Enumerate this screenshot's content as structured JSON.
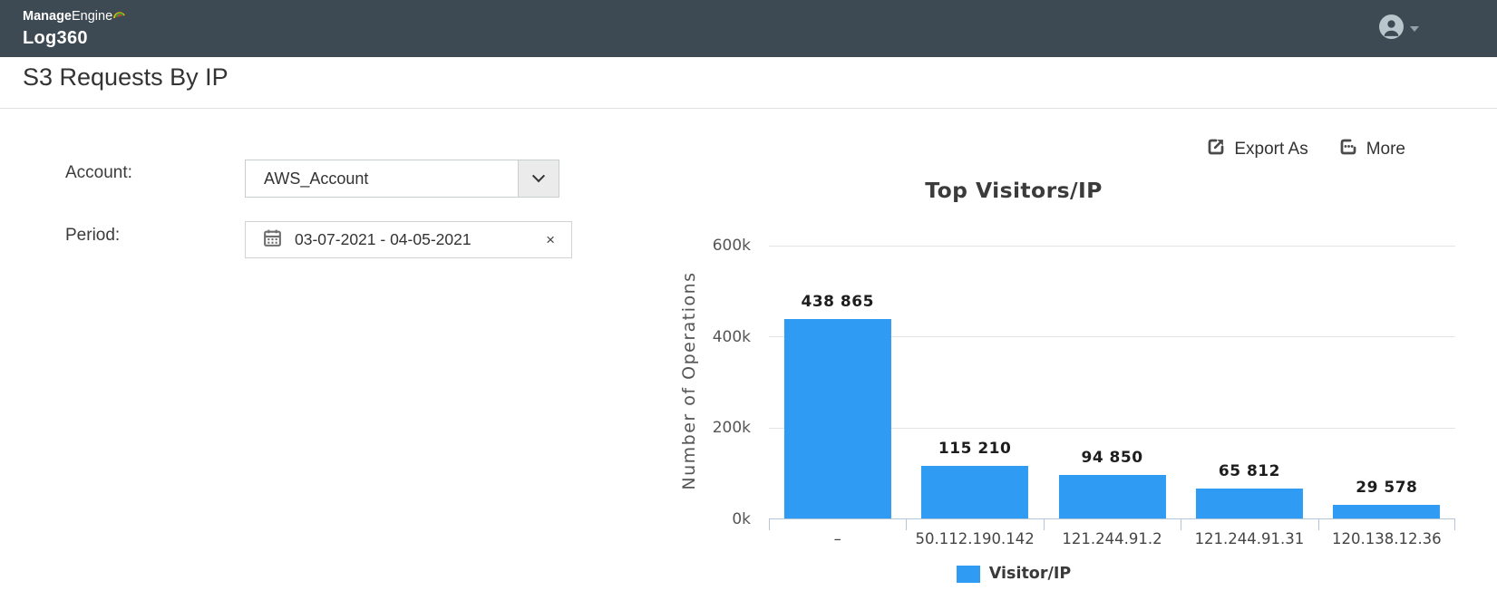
{
  "header": {
    "brand_part1": "Manage",
    "brand_part2": "Engine",
    "product": "Log360"
  },
  "page_title": "S3 Requests By IP",
  "filters": {
    "account_label": "Account:",
    "account_value": "AWS_Account",
    "period_label": "Period:",
    "period_value": "03-07-2021 - 04-05-2021",
    "period_clear_glyph": "×"
  },
  "toolbar": {
    "export_label": "Export As",
    "more_label": "More"
  },
  "chart_data": {
    "type": "bar",
    "title": "Top Visitors/IP",
    "xlabel": "",
    "ylabel": "Number of Operations",
    "categories": [
      "–",
      "50.112.190.142",
      "121.244.91.2",
      "121.244.91.31",
      "120.138.12.36"
    ],
    "values": [
      438865,
      115210,
      94850,
      65812,
      29578
    ],
    "value_labels": [
      "438 865",
      "115 210",
      "94 850",
      "65 812",
      "29 578"
    ],
    "ylim": [
      0,
      600000
    ],
    "ytick_values": [
      600000,
      400000,
      200000,
      0
    ],
    "ytick_labels": [
      "600k",
      "400k",
      "200k",
      "0k"
    ],
    "grid": true,
    "legend": {
      "label": "Visitor/IP",
      "position": "bottom"
    },
    "bar_color": "#2f9bf2"
  },
  "colors": {
    "header_bg": "#3d4a53",
    "bar_blue": "#2f9bf2"
  }
}
